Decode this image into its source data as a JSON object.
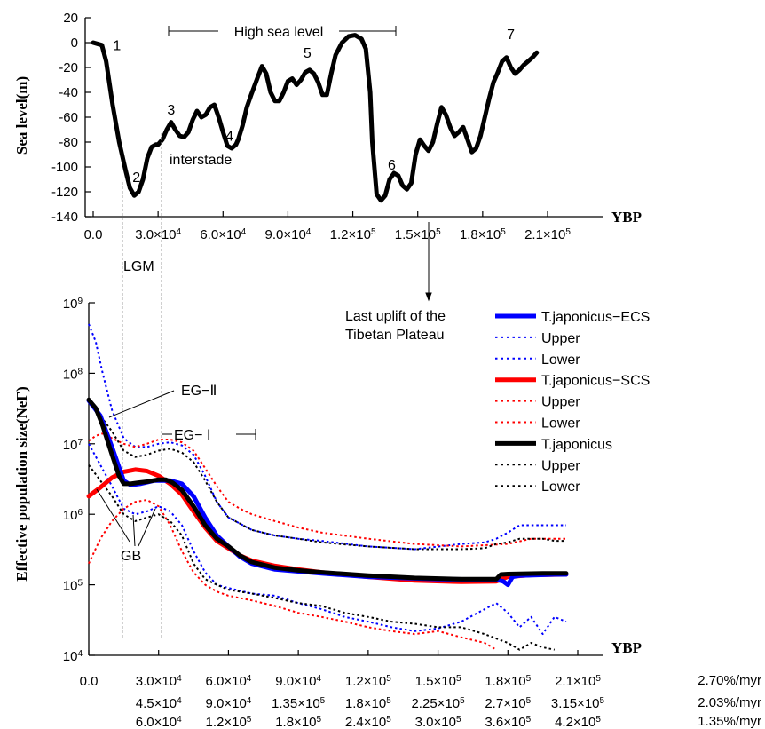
{
  "chart_data": [
    {
      "type": "line",
      "ylabel": "Sea level(m)",
      "xlabel": "YBP",
      "ylim": [
        -140,
        20
      ],
      "xlim": [
        0,
        210000
      ],
      "y_ticks": [
        "20",
        "0",
        "-20",
        "-40",
        "-60",
        "-80",
        "-100",
        "-120",
        "-140"
      ],
      "x_ticks": [
        {
          "m": "0.0",
          "e": ""
        },
        {
          "m": "3.0×10",
          "e": "4"
        },
        {
          "m": "6.0×10",
          "e": "4"
        },
        {
          "m": "9.0×10",
          "e": "4"
        },
        {
          "m": "1.2×10",
          "e": "5"
        },
        {
          "m": "1.5×10",
          "e": "5"
        },
        {
          "m": "1.8×10",
          "e": "5"
        },
        {
          "m": "2.1×10",
          "e": "5"
        }
      ],
      "series": [
        {
          "color": "#000000",
          "x": [
            0,
            4000,
            6000,
            9000,
            12000,
            15000,
            17000,
            19000,
            21000,
            23000,
            25000,
            27000,
            29000,
            30000,
            32000,
            34000,
            36000,
            38000,
            40000,
            42000,
            44000,
            46000,
            48000,
            50000,
            52000,
            54000,
            56000,
            58000,
            60000,
            62000,
            64000,
            66000,
            67000,
            69000,
            71000,
            73000,
            76000,
            78000,
            80000,
            82000,
            84000,
            86000,
            88000,
            90000,
            92000,
            94000,
            96000,
            98000,
            100000,
            102000,
            104000,
            106000,
            108000,
            110000,
            112000,
            115000,
            118000,
            121000,
            124000,
            126000,
            128000,
            129000,
            131000,
            133000,
            135000,
            137000,
            139000,
            141000,
            143000,
            145000,
            147000,
            149000,
            151000,
            153000,
            155000,
            157000,
            159000,
            161000,
            163000,
            165000,
            167000,
            169000,
            171000,
            173000,
            175000,
            177000,
            179000,
            181000,
            183000,
            185000,
            187000,
            189000,
            191000,
            193000,
            195000,
            197000,
            199000,
            201000,
            203000,
            205000
          ],
          "y": [
            0,
            -2,
            -15,
            -50,
            -80,
            -103,
            -117,
            -123,
            -120,
            -110,
            -93,
            -84,
            -82,
            -82,
            -78,
            -70,
            -64,
            -70,
            -75,
            -76,
            -72,
            -62,
            -55,
            -60,
            -58,
            -52,
            -50,
            -60,
            -72,
            -83,
            -85,
            -82,
            -78,
            -67,
            -52,
            -42,
            -28,
            -19,
            -25,
            -40,
            -47,
            -47,
            -40,
            -31,
            -29,
            -34,
            -30,
            -24,
            -22,
            -25,
            -32,
            -42,
            -42,
            -25,
            -10,
            0,
            5,
            6,
            3,
            -5,
            -40,
            -80,
            -122,
            -127,
            -123,
            -110,
            -105,
            -107,
            -115,
            -118,
            -113,
            -90,
            -78,
            -83,
            -87,
            -80,
            -65,
            -52,
            -58,
            -68,
            -75,
            -72,
            -68,
            -78,
            -88,
            -85,
            -75,
            -60,
            -45,
            -32,
            -24,
            -15,
            -12,
            -20,
            -25,
            -22,
            -18,
            -15,
            -12,
            -8
          ]
        }
      ],
      "annotations": [
        {
          "text": "1",
          "x": 11000,
          "y": -6
        },
        {
          "text": "2",
          "x": 20000,
          "y": -112
        },
        {
          "text": "3",
          "x": 36000,
          "y": -58
        },
        {
          "text": "4",
          "x": 63000,
          "y": -79
        },
        {
          "text": "5",
          "x": 99000,
          "y": -12
        },
        {
          "text": "6",
          "x": 138000,
          "y": -102
        },
        {
          "text": "7",
          "x": 193000,
          "y": 3
        },
        {
          "text": "interstade"
        },
        {
          "text": "High sea level"
        },
        {
          "text": "LGM"
        },
        {
          "text": "Last uplift of the"
        },
        {
          "text": "Tibetan Plateau"
        }
      ]
    },
    {
      "type": "line",
      "ylabel": "Effective population size(NeΓ)",
      "xlabel": "YBP",
      "y_scale": "log",
      "ylim": [
        10000,
        1000000000
      ],
      "xlim": [
        0,
        210000
      ],
      "y_ticks": [
        {
          "m": "10",
          "e": "9"
        },
        {
          "m": "10",
          "e": "8"
        },
        {
          "m": "10",
          "e": "7"
        },
        {
          "m": "10",
          "e": "6"
        },
        {
          "m": "10",
          "e": "5"
        },
        {
          "m": "10",
          "e": "4"
        }
      ],
      "x_tick_rows": [
        {
          "rate": "2.70%/myr",
          "labels": [
            {
              "m": "0.0",
              "e": ""
            },
            {
              "m": "3.0×10",
              "e": "4"
            },
            {
              "m": "6.0×10",
              "e": "4"
            },
            {
              "m": "9.0×10",
              "e": "4"
            },
            {
              "m": "1.2×10",
              "e": "5"
            },
            {
              "m": "1.5×10",
              "e": "5"
            },
            {
              "m": "1.8×10",
              "e": "5"
            },
            {
              "m": "2.1×10",
              "e": "5"
            }
          ]
        },
        {
          "rate": "2.03%/myr",
          "labels": [
            {
              "m": "4.5×10",
              "e": "4"
            },
            {
              "m": "9.0×10",
              "e": "4"
            },
            {
              "m": "1.35×10",
              "e": "5"
            },
            {
              "m": "1.8×10",
              "e": "5"
            },
            {
              "m": "2.25×10",
              "e": "5"
            },
            {
              "m": "2.7×10",
              "e": "5"
            },
            {
              "m": "3.15×10",
              "e": "5"
            }
          ]
        },
        {
          "rate": "1.35%/myr",
          "labels": [
            {
              "m": "6.0×10",
              "e": "4"
            },
            {
              "m": "1.2×10",
              "e": "5"
            },
            {
              "m": "1.8×10",
              "e": "5"
            },
            {
              "m": "2.4×10",
              "e": "5"
            },
            {
              "m": "3.0×10",
              "e": "5"
            },
            {
              "m": "3.6×10",
              "e": "5"
            },
            {
              "m": "4.2×10",
              "e": "5"
            }
          ]
        }
      ],
      "series": [
        {
          "name": "T.japonicus−ECS",
          "color": "#0000ff",
          "style": "solid",
          "x": [
            0,
            5000,
            10000,
            15000,
            18000,
            22000,
            28000,
            35000,
            40000,
            45000,
            50000,
            55000,
            60000,
            65000,
            70000,
            80000,
            90000,
            100000,
            120000,
            150000,
            175000,
            178000,
            180000,
            182000,
            185000,
            200000,
            205000
          ],
          "y": [
            41000000,
            25000000,
            9000000,
            3000000,
            2600000,
            2700000,
            3000000,
            3000000,
            2700000,
            1800000,
            900000,
            500000,
            350000,
            250000,
            200000,
            165000,
            155000,
            145000,
            130000,
            120000,
            118000,
            112000,
            100000,
            130000,
            135000,
            140000,
            140000
          ]
        },
        {
          "name": "Upper",
          "color": "#0000ff",
          "style": "dotted",
          "x": [
            0,
            3000,
            6000,
            10000,
            15000,
            20000,
            25000,
            30000,
            35000,
            40000,
            45000,
            50000,
            55000,
            60000,
            70000,
            80000,
            90000,
            100000,
            120000,
            140000,
            160000,
            170000,
            175000,
            180000,
            185000,
            190000,
            200000,
            205000
          ],
          "y": [
            500000000,
            280000000,
            100000000,
            30000000,
            12000000,
            9000000,
            9000000,
            10000000,
            10500000,
            9500000,
            7000000,
            3500000,
            1500000,
            900000,
            600000,
            500000,
            450000,
            420000,
            350000,
            320000,
            380000,
            400000,
            450000,
            550000,
            700000,
            700000,
            700000,
            700000
          ]
        },
        {
          "name": "Lower",
          "color": "#0000ff",
          "style": "dotted",
          "x": [
            0,
            5000,
            10000,
            15000,
            20000,
            25000,
            30000,
            35000,
            40000,
            45000,
            50000,
            55000,
            60000,
            70000,
            80000,
            90000,
            100000,
            110000,
            120000,
            130000,
            140000,
            150000,
            160000,
            170000,
            175000,
            180000,
            185000,
            190000,
            195000,
            200000,
            205000
          ],
          "y": [
            10000000,
            5000000,
            2500000,
            1200000,
            1000000,
            1100000,
            1300000,
            1100000,
            700000,
            300000,
            150000,
            100000,
            90000,
            75000,
            70000,
            55000,
            45000,
            35000,
            30000,
            25000,
            22000,
            24000,
            30000,
            45000,
            55000,
            40000,
            25000,
            35000,
            20000,
            35000,
            30000
          ]
        },
        {
          "name": "T.japonicus−SCS",
          "color": "#ff0000",
          "style": "solid",
          "x": [
            0,
            5000,
            10000,
            15000,
            20000,
            25000,
            30000,
            35000,
            40000,
            45000,
            50000,
            55000,
            60000,
            65000,
            70000,
            80000,
            90000,
            100000,
            120000,
            140000,
            160000,
            175000,
            180000,
            190000,
            205000
          ],
          "y": [
            1800000,
            2400000,
            3300000,
            4000000,
            4300000,
            4100000,
            3500000,
            2700000,
            1900000,
            1100000,
            650000,
            420000,
            330000,
            260000,
            220000,
            185000,
            165000,
            150000,
            130000,
            115000,
            110000,
            112000,
            130000,
            138000,
            140000
          ]
        },
        {
          "name": "Upper",
          "color": "#ff0000",
          "style": "dotted",
          "x": [
            0,
            3000,
            6000,
            10000,
            15000,
            20000,
            25000,
            30000,
            35000,
            40000,
            45000,
            50000,
            55000,
            60000,
            65000,
            70000,
            80000,
            90000,
            100000,
            120000,
            140000,
            160000,
            180000,
            190000,
            200000,
            205000
          ],
          "y": [
            11000000,
            13000000,
            14000000,
            12000000,
            10000000,
            9000000,
            10000000,
            11500000,
            11500000,
            10500000,
            8000000,
            4500000,
            2500000,
            1500000,
            1200000,
            1000000,
            800000,
            650000,
            550000,
            450000,
            380000,
            350000,
            380000,
            450000,
            450000,
            450000
          ]
        },
        {
          "name": "Lower",
          "color": "#ff0000",
          "style": "dotted",
          "x": [
            0,
            5000,
            10000,
            15000,
            20000,
            25000,
            30000,
            35000,
            40000,
            45000,
            50000,
            55000,
            60000,
            70000,
            80000,
            90000,
            100000,
            110000,
            120000,
            130000,
            140000,
            150000,
            160000,
            170000,
            175000
          ],
          "y": [
            200000,
            450000,
            800000,
            1200000,
            1500000,
            1600000,
            1300000,
            700000,
            300000,
            150000,
            100000,
            80000,
            70000,
            60000,
            50000,
            40000,
            35000,
            30000,
            25000,
            22000,
            20000,
            22000,
            18000,
            15000,
            12000
          ]
        },
        {
          "name": "T.japonicus",
          "color": "#000000",
          "style": "solid",
          "x": [
            0,
            3000,
            6000,
            10000,
            13000,
            15000,
            18000,
            21000,
            25000,
            30000,
            33000,
            36000,
            40000,
            45000,
            50000,
            55000,
            60000,
            65000,
            70000,
            80000,
            90000,
            100000,
            120000,
            140000,
            160000,
            175000,
            177000,
            180000,
            185000,
            195000,
            205000
          ],
          "y": [
            42000000,
            32000000,
            18000000,
            7000000,
            3500000,
            2700000,
            2700000,
            2800000,
            2900000,
            3100000,
            3100000,
            2800000,
            2200000,
            1300000,
            700000,
            450000,
            350000,
            260000,
            210000,
            175000,
            160000,
            150000,
            135000,
            125000,
            120000,
            120000,
            140000,
            142000,
            143000,
            145000,
            145000
          ]
        },
        {
          "name": "Upper",
          "color": "#000000",
          "style": "dotted",
          "x": [
            0,
            5000,
            10000,
            15000,
            20000,
            25000,
            30000,
            35000,
            40000,
            45000,
            50000,
            55000,
            60000,
            70000,
            80000,
            90000,
            100000,
            120000,
            140000,
            160000,
            170000,
            175000,
            180000,
            185000,
            190000,
            195000,
            200000,
            205000
          ],
          "y": [
            40000000,
            25000000,
            15000000,
            8000000,
            6500000,
            7000000,
            8000000,
            8500000,
            7500000,
            5500000,
            3000000,
            1500000,
            900000,
            600000,
            500000,
            450000,
            400000,
            350000,
            320000,
            320000,
            330000,
            380000,
            400000,
            450000,
            450000,
            450000,
            420000,
            420000
          ]
        },
        {
          "name": "Lower",
          "color": "#000000",
          "style": "dotted",
          "x": [
            0,
            5000,
            10000,
            15000,
            20000,
            25000,
            30000,
            35000,
            40000,
            45000,
            50000,
            55000,
            60000,
            70000,
            80000,
            90000,
            100000,
            110000,
            120000,
            130000,
            140000,
            150000,
            160000,
            170000,
            180000,
            185000,
            190000,
            195000,
            200000
          ],
          "y": [
            5000000,
            3000000,
            1800000,
            1000000,
            800000,
            900000,
            1000000,
            800000,
            500000,
            200000,
            120000,
            100000,
            85000,
            75000,
            65000,
            55000,
            50000,
            40000,
            35000,
            30000,
            28000,
            25000,
            25000,
            20000,
            15000,
            12000,
            15000,
            13000,
            12000
          ]
        }
      ],
      "annotations": [
        {
          "text": "EG−Ⅱ"
        },
        {
          "text": "EG− Ⅰ"
        },
        {
          "text": "GB"
        }
      ]
    }
  ]
}
